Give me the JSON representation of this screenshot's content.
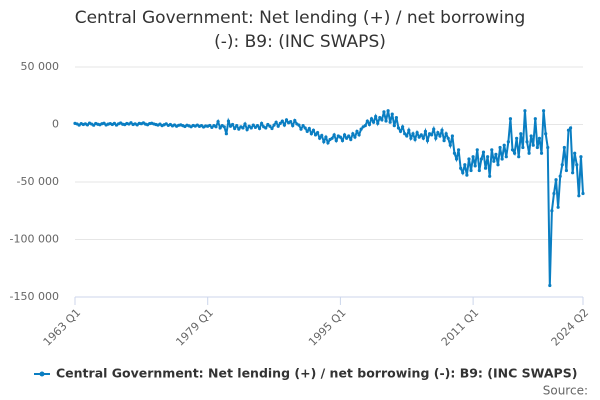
{
  "chart_data": {
    "type": "line",
    "title": "Central Government: Net lending (+) / net borrowing (-): B9: (INC SWAPS)",
    "source": "Source:",
    "categories": [
      "1963 Q1",
      null,
      null,
      null,
      null,
      null,
      null,
      null,
      null,
      null,
      null,
      null,
      null,
      null,
      null,
      null,
      null,
      null,
      null,
      null,
      null,
      null,
      null,
      null,
      null,
      null,
      null,
      null,
      null,
      null,
      null,
      null,
      null,
      null,
      null,
      null,
      null,
      null,
      null,
      null,
      null,
      null,
      null,
      null,
      null,
      null,
      null,
      null,
      null,
      null,
      null,
      null,
      null,
      null,
      null,
      null,
      null,
      null,
      null,
      null,
      null,
      null,
      null,
      null,
      "1979 Q1",
      null,
      null,
      null,
      null,
      null,
      null,
      null,
      null,
      null,
      null,
      null,
      null,
      null,
      null,
      null,
      null,
      null,
      null,
      null,
      null,
      null,
      null,
      null,
      null,
      null,
      null,
      null,
      null,
      null,
      null,
      null,
      null,
      null,
      null,
      null,
      null,
      null,
      null,
      null,
      null,
      null,
      null,
      null,
      null,
      null,
      null,
      null,
      null,
      null,
      null,
      null,
      null,
      null,
      null,
      null,
      null,
      null,
      null,
      null,
      null,
      null,
      null,
      null,
      "1995 Q1",
      null,
      null,
      null,
      null,
      null,
      null,
      null,
      null,
      null,
      null,
      null,
      null,
      null,
      null,
      null,
      null,
      null,
      null,
      null,
      null,
      null,
      null,
      null,
      null,
      null,
      null,
      null,
      null,
      null,
      null,
      null,
      null,
      null,
      null,
      null,
      null,
      null,
      null,
      null,
      null,
      null,
      null,
      null,
      null,
      null,
      null,
      null,
      null,
      null,
      null,
      null,
      null,
      null,
      null,
      null,
      null,
      null,
      null,
      null,
      null,
      null,
      null,
      null,
      "2011 Q1",
      null,
      null,
      null,
      null,
      null,
      null,
      null,
      null,
      null,
      null,
      null,
      null,
      null,
      null,
      null,
      null,
      null,
      null,
      null,
      null,
      null,
      null,
      null,
      null,
      null,
      null,
      null,
      null,
      null,
      null,
      null,
      null,
      null,
      null,
      null,
      null,
      null,
      null,
      null,
      null,
      null,
      null,
      null,
      null,
      null,
      null,
      null,
      null,
      null,
      null,
      null,
      null,
      "2024 Q2"
    ],
    "series": [
      {
        "name": "Central Government: Net lending (+) / net borrowing (-): B9: (INC SWAPS)",
        "color": "#0a7ec2",
        "values": [
          1000,
          500,
          -500,
          800,
          0,
          600,
          -300,
          1200,
          400,
          -600,
          900,
          200,
          -200,
          700,
          1100,
          -400,
          300,
          800,
          0,
          1000,
          -500,
          600,
          1300,
          200,
          -100,
          900,
          400,
          1500,
          0,
          600,
          -300,
          1000,
          700,
          1400,
          300,
          -200,
          800,
          1100,
          500,
          0,
          -500,
          300,
          -1000,
          -200,
          600,
          -800,
          0,
          -1200,
          -400,
          -1500,
          -700,
          -300,
          -1000,
          -1800,
          -600,
          -1200,
          -2000,
          -800,
          -1400,
          -500,
          -1600,
          -1000,
          -2200,
          -1300,
          -1500,
          -800,
          -2500,
          -1000,
          -2000,
          2500,
          -3000,
          -1000,
          -2000,
          -8000,
          3000,
          -1500,
          0,
          -3500,
          -1000,
          -4000,
          -2000,
          -3000,
          500,
          -4500,
          -1500,
          -3000,
          -500,
          -2500,
          -1000,
          -3500,
          1000,
          -2000,
          -3000,
          0,
          -1500,
          -3500,
          -500,
          2000,
          -1500,
          1000,
          3000,
          -500,
          4000,
          1500,
          2500,
          -1000,
          3500,
          500,
          -500,
          -4000,
          -1000,
          -3000,
          -6000,
          -3500,
          -8000,
          -5000,
          -9000,
          -7000,
          -12000,
          -9500,
          -15000,
          -11000,
          -16000,
          -13000,
          -12000,
          -9000,
          -14000,
          -10000,
          -11000,
          -14000,
          -9000,
          -12000,
          -10000,
          -13000,
          -8000,
          -11000,
          -6000,
          -9000,
          -4000,
          -2000,
          -1000,
          3000,
          0,
          5000,
          2000,
          7000,
          1000,
          6000,
          4000,
          11000,
          3000,
          12000,
          2000,
          9000,
          -1000,
          6000,
          -3000,
          -6000,
          -2000,
          -8000,
          -10000,
          -5000,
          -12000,
          -8000,
          -13000,
          -7000,
          -11000,
          -9000,
          -12000,
          -6000,
          -14000,
          -8000,
          -9000,
          -4000,
          -12000,
          -7000,
          -10000,
          -5000,
          -14000,
          -8000,
          -12000,
          -18000,
          -10000,
          -25000,
          -30000,
          -22000,
          -38000,
          -42000,
          -35000,
          -44000,
          -30000,
          -40000,
          -28000,
          -36000,
          -22000,
          -40000,
          -30000,
          -24000,
          -38000,
          -28000,
          -45000,
          -22000,
          -32000,
          -26000,
          -35000,
          -20000,
          -30000,
          -18000,
          -28000,
          -15000,
          5000,
          -22000,
          -25000,
          -12000,
          -28000,
          -8000,
          -20000,
          12000,
          -15000,
          -25000,
          -10000,
          -18000,
          5000,
          -20000,
          -12000,
          -25000,
          12000,
          -8000,
          -20000,
          -140000,
          -75000,
          -60000,
          -48000,
          -72000,
          -45000,
          -35000,
          -20000,
          -40000,
          -5000,
          -3000,
          -42000,
          -25000,
          -35000,
          -62000,
          -28000,
          -60000
        ]
      }
    ],
    "ylim": [
      -150000,
      50000
    ],
    "yticks": [
      {
        "value": -150000,
        "label": "-150 000"
      },
      {
        "value": -100000,
        "label": "-100 000"
      },
      {
        "value": -50000,
        "label": "-50 000"
      },
      0,
      {
        "value": 50000,
        "label": "50 000"
      }
    ],
    "grid": true,
    "legend": "bottom"
  }
}
